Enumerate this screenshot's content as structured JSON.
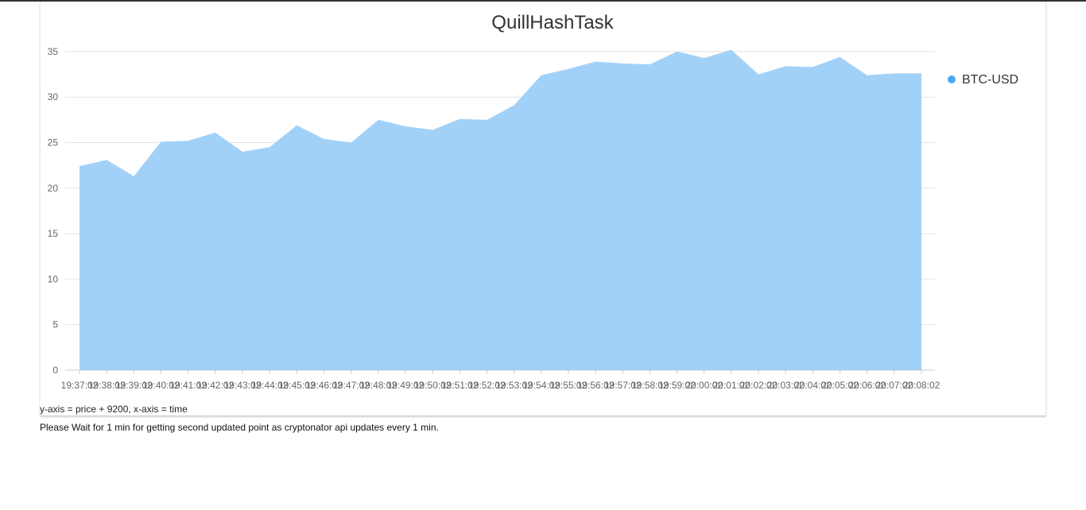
{
  "chart_data": {
    "type": "area",
    "title": "QuillHashTask",
    "x": [
      "19:37:02",
      "19:38:02",
      "19:39:02",
      "19:40:02",
      "19:41:02",
      "19:42:02",
      "19:43:02",
      "19:44:02",
      "19:45:02",
      "19:46:02",
      "19:47:02",
      "19:48:02",
      "19:49:02",
      "19:50:02",
      "19:51:02",
      "19:52:02",
      "19:53:02",
      "19:54:02",
      "19:55:02",
      "19:56:02",
      "19:57:02",
      "19:58:02",
      "19:59:02",
      "20:00:02",
      "20:01:02",
      "20:02:02",
      "20:03:02",
      "20:04:02",
      "20:05:02",
      "20:06:02",
      "20:07:02",
      "20:08:02"
    ],
    "series": [
      {
        "name": "BTC-USD",
        "color": "#a2d1f8",
        "values": [
          22.4,
          23.1,
          21.3,
          25.1,
          25.2,
          26.1,
          24.0,
          24.5,
          26.9,
          25.4,
          25.0,
          27.5,
          26.8,
          26.4,
          27.6,
          27.5,
          29.1,
          32.4,
          33.1,
          33.9,
          33.7,
          33.6,
          35.0,
          34.3,
          35.2,
          32.5,
          33.4,
          33.3,
          34.4,
          32.4,
          32.6,
          32.6
        ]
      }
    ],
    "ylim": [
      0,
      37
    ],
    "yticks": [
      0,
      5,
      10,
      15,
      20,
      25,
      30,
      35
    ],
    "grid": true,
    "legend": "right",
    "legend_marker_color": "#4aa8f2"
  },
  "caption": "y-axis = price + 9200, x-axis = time",
  "note": "Please Wait for 1 min for getting second updated point as cryptonator api updates every 1 min."
}
